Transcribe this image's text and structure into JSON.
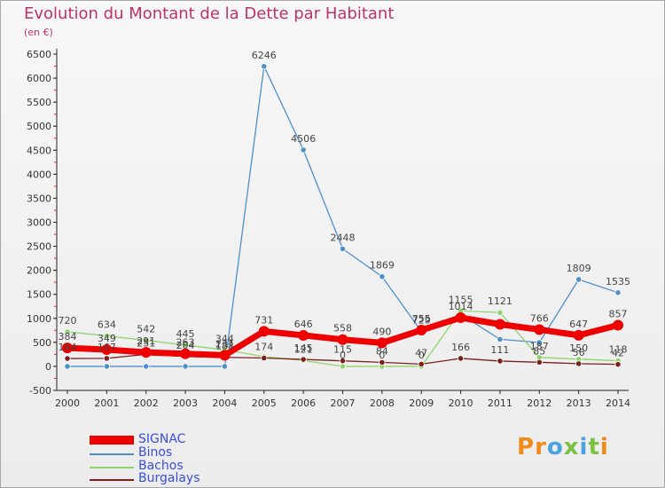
{
  "header": {
    "title": "Evolution du Montant de la Dette par Habitant",
    "unit": "(en €)"
  },
  "logo": {
    "text": "Proxiti"
  },
  "chart_data": {
    "type": "line",
    "x": [
      "2000",
      "2001",
      "2002",
      "2003",
      "2004",
      "2005",
      "2006",
      "2007",
      "2008",
      "2009",
      "2010",
      "2011",
      "2012",
      "2013",
      "2014"
    ],
    "ylim": [
      -500,
      6500
    ],
    "yticks": [
      -500,
      0,
      500,
      1000,
      1500,
      2000,
      2500,
      3000,
      3500,
      4000,
      4500,
      5000,
      5500,
      6000,
      6500
    ],
    "grid": false,
    "legend_position": "bottom-left",
    "series": [
      {
        "name": "Binos",
        "color": "#4f8fc8",
        "values": [
          0,
          0,
          0,
          0,
          0,
          6246,
          4506,
          2448,
          1869,
          729,
          1085,
          564,
          497,
          1809,
          1535
        ],
        "labels": [
          "",
          "",
          "",
          "",
          "",
          "6246",
          "4506",
          "2448",
          "1869",
          "729",
          "",
          "",
          "",
          "1809",
          "1535"
        ]
      },
      {
        "name": "Bachos",
        "color": "#8fd36a",
        "values": [
          720,
          634,
          542,
          445,
          344,
          204,
          121,
          0,
          0,
          0,
          1155,
          1121,
          187,
          150,
          118
        ],
        "labels": [
          "720",
          "634",
          "542",
          "445",
          "344",
          "",
          "121",
          "0",
          "0",
          "0",
          "1155",
          "1121",
          "187",
          "150",
          "118"
        ]
      },
      {
        "name": "Burgalays",
        "color": "#7a1e1e",
        "values": [
          164,
          167,
          251,
          204,
          188,
          174,
          145,
          115,
          84,
          47,
          166,
          111,
          85,
          56,
          42
        ],
        "labels": [
          "164",
          "167",
          "251",
          "204",
          "188",
          "174",
          "145",
          "115",
          "84",
          "47",
          "166",
          "111",
          "85",
          "56",
          "42"
        ]
      },
      {
        "name": "SIGNAC",
        "color": "#ee0000",
        "values": [
          384,
          349,
          291,
          263,
          231,
          731,
          646,
          558,
          490,
          755,
          1014,
          876,
          766,
          647,
          857
        ],
        "labels": [
          "384",
          "349",
          "291",
          "263",
          "231",
          "731",
          "646",
          "558",
          "490",
          "755",
          "1014",
          "",
          "766",
          "647",
          "857"
        ]
      }
    ],
    "legend_order": [
      "SIGNAC",
      "Binos",
      "Bachos",
      "Burgalays"
    ]
  }
}
